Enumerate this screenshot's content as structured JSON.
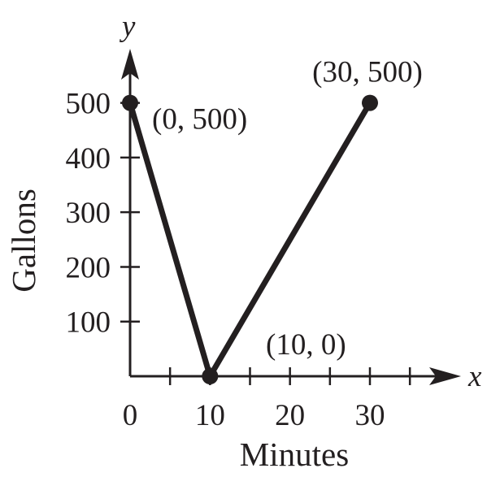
{
  "chart_data": {
    "type": "line",
    "title": "",
    "xlabel": "Minutes",
    "ylabel": "Gallons",
    "x_axis_var": "x",
    "y_axis_var": "y",
    "xlim": [
      0,
      36
    ],
    "ylim": [
      0,
      500
    ],
    "x_ticks": [
      0,
      5,
      10,
      15,
      20,
      25,
      30,
      35
    ],
    "x_tick_labels": [
      {
        "value": 0,
        "label": "0"
      },
      {
        "value": 10,
        "label": "10"
      },
      {
        "value": 20,
        "label": "20"
      },
      {
        "value": 30,
        "label": "30"
      }
    ],
    "y_ticks": [
      100,
      200,
      300,
      400,
      500
    ],
    "y_tick_labels": [
      {
        "value": 100,
        "label": "100"
      },
      {
        "value": 200,
        "label": "200"
      },
      {
        "value": 300,
        "label": "300"
      },
      {
        "value": 400,
        "label": "400"
      },
      {
        "value": 500,
        "label": "500"
      }
    ],
    "grid": false,
    "legend": "none",
    "colors": {
      "line": "#231f20",
      "axis": "#231f20"
    },
    "series": [
      {
        "x": [
          0,
          10,
          30
        ],
        "y": [
          500,
          0,
          500
        ]
      }
    ],
    "points": [
      {
        "x": 0,
        "y": 500,
        "label": "(0, 500)",
        "anchor": "right"
      },
      {
        "x": 10,
        "y": 0,
        "label": "(10, 0)",
        "anchor": "above-right"
      },
      {
        "x": 30,
        "y": 500,
        "label": "(30, 500)",
        "anchor": "above"
      }
    ]
  }
}
